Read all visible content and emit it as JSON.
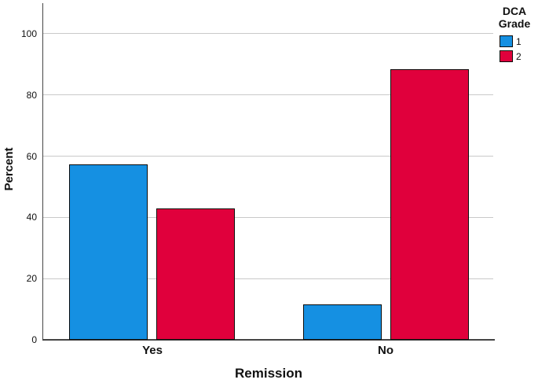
{
  "chart_data": {
    "type": "bar",
    "subtype": "clustered",
    "title": "",
    "xlabel": "Remission",
    "ylabel": "Percent",
    "categories": [
      "Yes",
      "No"
    ],
    "series": [
      {
        "name": "1",
        "color": "#1590E2",
        "values": [
          57.3,
          11.5
        ]
      },
      {
        "name": "2",
        "color": "#E0003C",
        "values": [
          42.9,
          88.5
        ]
      }
    ],
    "ylim": [
      0,
      110
    ],
    "yticks": [
      0,
      20,
      40,
      60,
      80,
      100
    ],
    "grid": true,
    "legend_title": "DCA Grade",
    "legend_position": "top-right"
  },
  "legend": {
    "title_line1": "DCA",
    "title_line2": "Grade",
    "items": [
      {
        "label": "1",
        "color": "#1590E2"
      },
      {
        "label": "2",
        "color": "#E0003C"
      }
    ]
  },
  "style": {
    "axis_color": "#454545",
    "grid_color": "#c9c9c9",
    "bar_border_color": "#0b0b0b",
    "background": "#ffffff"
  }
}
